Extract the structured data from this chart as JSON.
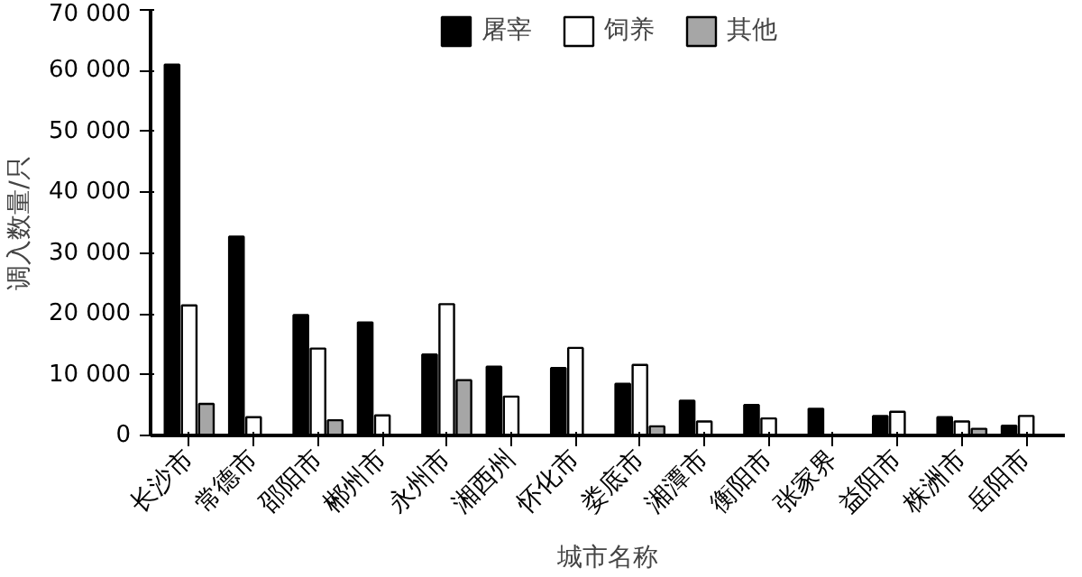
{
  "chart_data": {
    "type": "bar",
    "xlabel": "城市名称",
    "ylabel": "调入数量/只",
    "categories": [
      "长沙市",
      "常德市",
      "邵阳市",
      "郴州市",
      "永州市",
      "湘西州",
      "怀化市",
      "娄底市",
      "湘潭市",
      "衡阳市",
      "张家界",
      "益阳市",
      "株洲市",
      "岳阳市"
    ],
    "series": [
      {
        "name": "屠宰",
        "color": "#000000",
        "values": [
          61000,
          32700,
          19800,
          18600,
          13300,
          11300,
          11100,
          8500,
          5700,
          5000,
          4400,
          3200,
          3000,
          1600
        ]
      },
      {
        "name": "饲养",
        "color": "#ffffff",
        "values": [
          21400,
          3000,
          14300,
          3300,
          21600,
          6400,
          14400,
          11600,
          2300,
          2800,
          null,
          3900,
          2300,
          3200
        ]
      },
      {
        "name": "其他",
        "color": "#a6a6a6",
        "values": [
          5200,
          null,
          2500,
          null,
          9100,
          null,
          null,
          1500,
          null,
          null,
          null,
          null,
          1100,
          null
        ]
      }
    ],
    "ylim": [
      0,
      70000
    ],
    "yticks": [
      0,
      {
        "value": 10000,
        "label": "10 000"
      },
      {
        "value": 20000,
        "label": "20 000"
      },
      {
        "value": 30000,
        "label": "30 000"
      },
      {
        "value": 40000,
        "label": "40 000"
      },
      {
        "value": 50000,
        "label": "50 000"
      },
      {
        "value": 60000,
        "label": "60 000"
      },
      {
        "value": 70000,
        "label": "70 000"
      }
    ],
    "grid": false,
    "legend": "top"
  }
}
